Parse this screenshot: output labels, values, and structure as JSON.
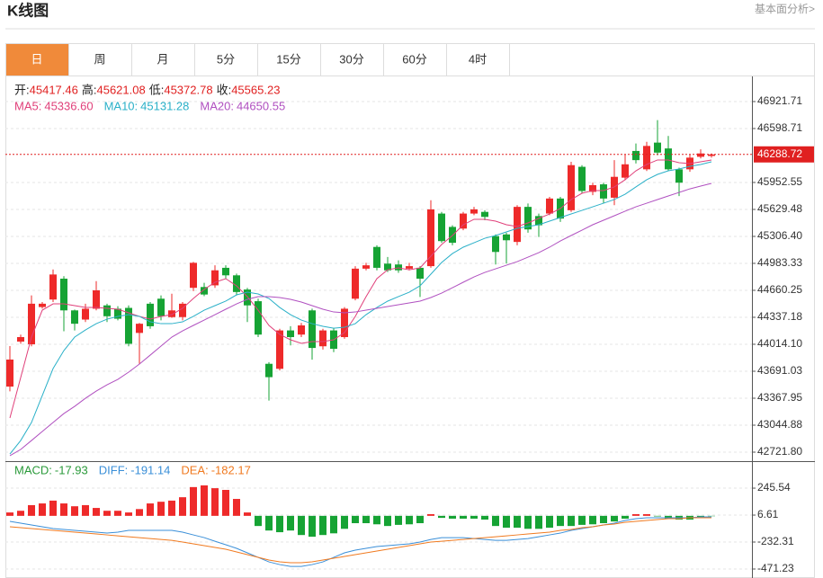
{
  "header": {
    "title": "K线图",
    "link": "基本面分析>"
  },
  "tabs": [
    {
      "label": "日",
      "active": true
    },
    {
      "label": "周"
    },
    {
      "label": "月"
    },
    {
      "label": "5分"
    },
    {
      "label": "15分"
    },
    {
      "label": "30分"
    },
    {
      "label": "60分"
    },
    {
      "label": "4时"
    }
  ],
  "chart_data": [
    {
      "type": "candlestick",
      "info": [
        {
          "label": "开:",
          "value": "45417.46"
        },
        {
          "label": "高:",
          "value": "45621.08"
        },
        {
          "label": "低:",
          "value": "45372.78"
        },
        {
          "label": "收:",
          "value": "45565.23"
        }
      ],
      "up_color": "#ee2a2a",
      "down_color": "#16a334",
      "open": [
        43507,
        44046,
        44014,
        44460,
        44550,
        44800,
        44420,
        44310,
        44440,
        44480,
        44440,
        44450,
        44150,
        44500,
        44560,
        44340,
        44340,
        44690,
        44700,
        44720,
        44930,
        44840,
        44670,
        44530,
        43780,
        43720,
        44180,
        44130,
        44420,
        43990,
        44180,
        44100,
        44560,
        44920,
        45180,
        44980,
        44970,
        44920,
        44930,
        44950,
        45580,
        45420,
        45400,
        45580,
        45600,
        45310,
        45330,
        45240,
        45660,
        45550,
        45580,
        45760,
        45620,
        46140,
        45840,
        45930,
        45770,
        46010,
        46330,
        46110,
        46430,
        46360,
        46110,
        46110,
        46260,
        46270
      ],
      "high": [
        43992,
        44130,
        44600,
        44520,
        44910,
        44830,
        44430,
        44500,
        44770,
        44500,
        44470,
        44480,
        44270,
        44520,
        44600,
        44620,
        44520,
        45000,
        44750,
        44960,
        44960,
        44860,
        44690,
        44560,
        43800,
        44200,
        44230,
        44270,
        44440,
        44200,
        44210,
        44460,
        44950,
        44990,
        45200,
        45060,
        45020,
        44990,
        44950,
        45740,
        45600,
        45440,
        45600,
        45660,
        45620,
        45330,
        45350,
        45680,
        45700,
        45580,
        45780,
        45780,
        46200,
        46160,
        45950,
        45950,
        46220,
        46290,
        46420,
        46440,
        46700,
        46510,
        46130,
        46290,
        46350,
        46300
      ],
      "low": [
        43450,
        44020,
        43990,
        44440,
        44520,
        44170,
        44180,
        44280,
        44420,
        44280,
        44300,
        43990,
        43780,
        44200,
        44300,
        44330,
        44300,
        44650,
        44590,
        44690,
        44800,
        44600,
        44280,
        44100,
        43340,
        43700,
        44000,
        44100,
        43830,
        43950,
        43920,
        44080,
        44540,
        44900,
        44900,
        44880,
        44870,
        44900,
        44580,
        44930,
        45230,
        45200,
        45380,
        45560,
        45500,
        44970,
        44980,
        45200,
        45350,
        45300,
        45560,
        45480,
        45600,
        45820,
        45800,
        45700,
        45680,
        45980,
        46180,
        46090,
        46280,
        46090,
        45790,
        46080,
        46240,
        46250
      ],
      "close": [
        43831,
        44100,
        44500,
        44500,
        44850,
        44420,
        44260,
        44440,
        44660,
        44350,
        44320,
        44020,
        44260,
        44230,
        44350,
        44420,
        44500,
        44990,
        44610,
        44900,
        44840,
        44640,
        44480,
        44130,
        43620,
        44180,
        44100,
        44240,
        43970,
        44180,
        43960,
        44440,
        44920,
        44960,
        44930,
        44900,
        44900,
        44950,
        44800,
        45630,
        45250,
        45230,
        45580,
        45630,
        45540,
        45120,
        45260,
        45660,
        45390,
        45440,
        45760,
        45520,
        46160,
        45850,
        45920,
        45760,
        46020,
        46170,
        46220,
        46390,
        46310,
        46110,
        45950,
        46250,
        46300,
        46288.72
      ],
      "series": [
        {
          "name": "MA5:",
          "legend_value": "45336.60",
          "color": "#e0407a",
          "values": [
            43131,
            43615,
            44100,
            44423,
            44498,
            44498,
            44477,
            44455,
            44455,
            44445,
            44434,
            44391,
            44348,
            44315,
            44348,
            44369,
            44445,
            44563,
            44671,
            44757,
            44800,
            44714,
            44585,
            44423,
            44240,
            44132,
            44068,
            44025,
            44046,
            44046,
            44068,
            44154,
            44348,
            44585,
            44800,
            44907,
            44929,
            44907,
            44929,
            45069,
            45209,
            45317,
            45446,
            45511,
            45511,
            45489,
            45446,
            45425,
            45468,
            45522,
            45575,
            45640,
            45748,
            45823,
            45856,
            45856,
            45899,
            45985,
            46092,
            46168,
            46222,
            46222,
            46189,
            46179,
            46200,
            46222
          ]
        },
        {
          "name": "MA10:",
          "legend_value": "45131.28",
          "color": "#2ab0c8",
          "values": [
            42700,
            42861,
            43077,
            43400,
            43723,
            43938,
            44100,
            44186,
            44261,
            44315,
            44348,
            44369,
            44348,
            44283,
            44261,
            44261,
            44283,
            44348,
            44423,
            44477,
            44531,
            44606,
            44638,
            44617,
            44563,
            44455,
            44369,
            44304,
            44261,
            44229,
            44207,
            44218,
            44261,
            44369,
            44455,
            44531,
            44585,
            44638,
            44714,
            44854,
            44994,
            45101,
            45177,
            45230,
            45284,
            45317,
            45360,
            45403,
            45425,
            45446,
            45489,
            45532,
            45575,
            45618,
            45661,
            45704,
            45748,
            45812,
            45899,
            45985,
            46049,
            46092,
            46114,
            46146,
            46168,
            46200
          ]
        },
        {
          "name": "MA20:",
          "legend_value": "44650.55",
          "color": "#b050c0",
          "values": [
            42679,
            42754,
            42861,
            42969,
            43077,
            43184,
            43270,
            43367,
            43453,
            43529,
            43593,
            43680,
            43777,
            43884,
            43992,
            44100,
            44175,
            44240,
            44304,
            44369,
            44434,
            44498,
            44552,
            44585,
            44585,
            44574,
            44552,
            44520,
            44477,
            44434,
            44401,
            44391,
            44401,
            44423,
            44445,
            44466,
            44488,
            44509,
            44531,
            44574,
            44627,
            44692,
            44757,
            44821,
            44875,
            44918,
            44961,
            45004,
            45058,
            45112,
            45177,
            45252,
            45317,
            45381,
            45446,
            45500,
            45554,
            45608,
            45661,
            45704,
            45748,
            45791,
            45833,
            45876,
            45909,
            45942
          ]
        }
      ],
      "last_price": 46288.72,
      "last_price_color": "#e02020",
      "ylim": [
        42614,
        47223
      ],
      "yticks": [
        46921.71,
        46598.71,
        45952.55,
        45629.48,
        {
          "value": 45306.4,
          "label": "45306.40"
        },
        44983.33,
        44660.25,
        44337.18,
        {
          "value": 44014.1,
          "label": "44014.10"
        },
        43691.03,
        43367.95,
        43044.88,
        {
          "value": 42721.8,
          "label": "42721.80"
        }
      ],
      "grid": true
    },
    {
      "type": "macd",
      "up_color": "#ee2a2a",
      "down_color": "#16a334",
      "series": [
        {
          "name": "MACD:",
          "legend_value": "-17.93",
          "color": "#2a9a3a",
          "kind": "histogram",
          "values": [
            30,
            45,
            95,
            110,
            135,
            110,
            85,
            95,
            70,
            45,
            45,
            30,
            60,
            110,
            125,
            135,
            165,
            255,
            270,
            245,
            230,
            150,
            30,
            -90,
            -130,
            -145,
            -130,
            -170,
            -185,
            -170,
            -155,
            -115,
            -65,
            -65,
            -75,
            -90,
            -80,
            -75,
            -65,
            15,
            -18,
            -25,
            -25,
            -25,
            -33,
            -90,
            -105,
            -105,
            -115,
            -115,
            -105,
            -90,
            -90,
            -80,
            -75,
            -65,
            -50,
            -25,
            15,
            15,
            -5,
            -25,
            -33,
            -33,
            -10,
            -3
          ]
        },
        {
          "name": "DIFF:",
          "legend_value": "-191.14",
          "color": "#3a8fd8",
          "kind": "line",
          "values": [
            -49,
            -65,
            -81,
            -97,
            -113,
            -121,
            -129,
            -137,
            -145,
            -153,
            -145,
            -129,
            -129,
            -129,
            -129,
            -129,
            -145,
            -169,
            -193,
            -225,
            -256,
            -288,
            -328,
            -368,
            -408,
            -432,
            -448,
            -448,
            -432,
            -408,
            -368,
            -328,
            -304,
            -288,
            -272,
            -264,
            -256,
            -248,
            -232,
            -209,
            -193,
            -193,
            -193,
            -201,
            -209,
            -217,
            -217,
            -209,
            -201,
            -185,
            -169,
            -153,
            -129,
            -113,
            -97,
            -81,
            -65,
            -41,
            -25,
            -17,
            -17,
            -17,
            -17,
            -17,
            -9,
            -9
          ]
        },
        {
          "name": "DEA:",
          "legend_value": "-182.17",
          "color": "#f07a20",
          "kind": "line",
          "values": [
            -97,
            -105,
            -113,
            -121,
            -129,
            -137,
            -145,
            -153,
            -161,
            -169,
            -177,
            -185,
            -193,
            -201,
            -209,
            -217,
            -232,
            -248,
            -264,
            -280,
            -296,
            -320,
            -344,
            -368,
            -392,
            -408,
            -416,
            -416,
            -408,
            -392,
            -376,
            -360,
            -344,
            -328,
            -312,
            -296,
            -280,
            -264,
            -248,
            -232,
            -225,
            -217,
            -209,
            -201,
            -193,
            -185,
            -177,
            -169,
            -161,
            -153,
            -145,
            -129,
            -121,
            -105,
            -97,
            -81,
            -73,
            -57,
            -49,
            -41,
            -33,
            -25,
            -25,
            -17,
            -17,
            -17
          ]
        }
      ],
      "ylim": [
        -551,
        469
      ],
      "yticks": [
        245.54,
        6.61,
        -232.31,
        -471.23
      ],
      "grid": true
    }
  ]
}
